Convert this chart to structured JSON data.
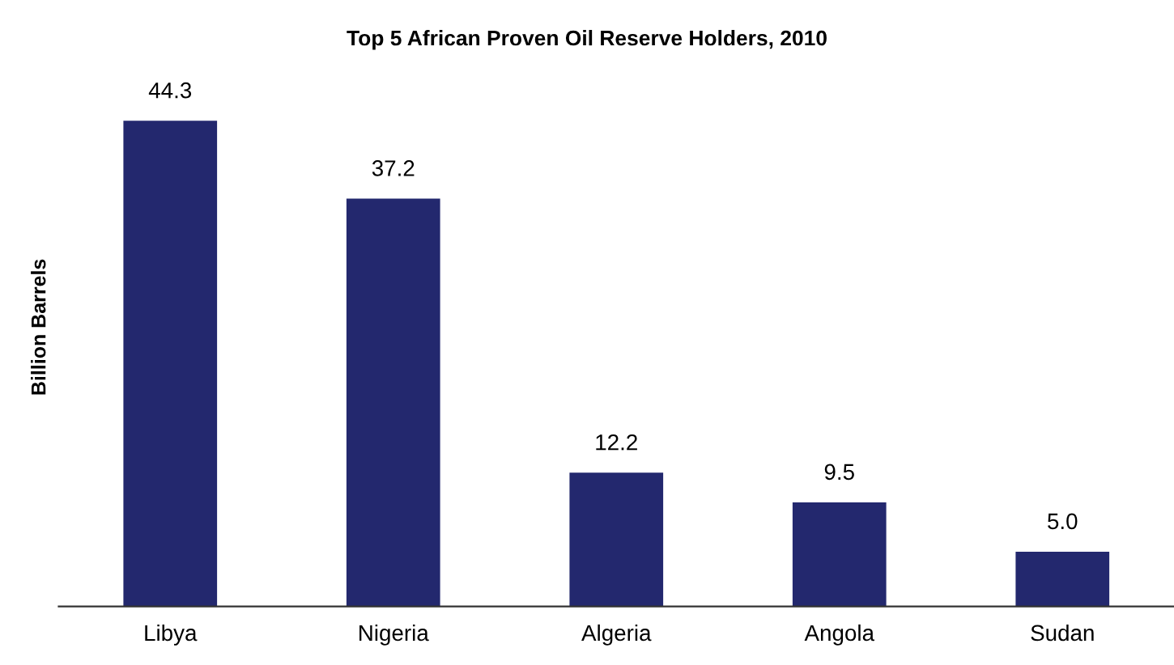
{
  "chart_data": {
    "type": "bar",
    "title": "Top 5 African Proven Oil Reserve Holders, 2010",
    "ylabel": "Billion Barrels",
    "categories": [
      "Libya",
      "Nigeria",
      "Algeria",
      "Angola",
      "Sudan"
    ],
    "values": [
      44.3,
      37.2,
      12.2,
      9.5,
      5.0
    ],
    "value_labels": [
      "44.3",
      "37.2",
      "12.2",
      "9.5",
      "5.0"
    ],
    "color": "#23286e"
  }
}
